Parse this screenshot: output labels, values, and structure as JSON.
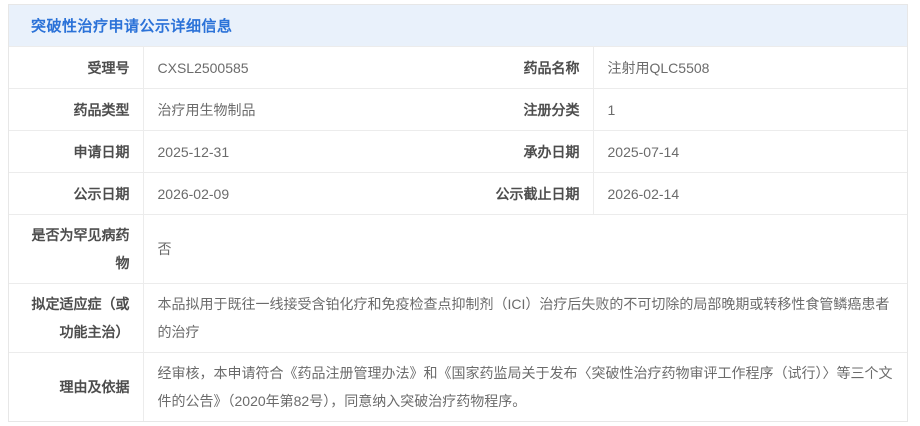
{
  "panel": {
    "title": "突破性治疗申请公示详细信息",
    "colors": {
      "header_bg": "#e9f1fb",
      "title_text": "#2b72d8",
      "panel_border": "#e7e7e7",
      "row_border": "#ececec",
      "label_text": "#4d4d4d",
      "value_text": "#6b6b6b"
    }
  },
  "rows": [
    {
      "kind": "pair",
      "left": {
        "label": "受理号",
        "value": "CXSL2500585"
      },
      "right": {
        "label": "药品名称",
        "value": "注射用QLC5508"
      }
    },
    {
      "kind": "pair",
      "left": {
        "label": "药品类型",
        "value": "治疗用生物制品"
      },
      "right": {
        "label": "注册分类",
        "value": "1"
      }
    },
    {
      "kind": "pair",
      "left": {
        "label": "申请日期",
        "value": "2025-12-31"
      },
      "right": {
        "label": "承办日期",
        "value": "2025-07-14"
      }
    },
    {
      "kind": "pair",
      "left": {
        "label": "公示日期",
        "value": "2026-02-09"
      },
      "right": {
        "label": "公示截止日期",
        "value": "2026-02-14"
      }
    },
    {
      "kind": "full",
      "label": "是否为罕见病药物",
      "value": "否"
    },
    {
      "kind": "full",
      "label": "拟定适应症（或功能主治）",
      "value": "本品拟用于既往一线接受含铂化疗和免疫检查点抑制剂（ICI）治疗后失败的不可切除的局部晚期或转移性食管鳞癌患者的治疗"
    },
    {
      "kind": "full",
      "label": "理由及依据",
      "value": "经审核，本申请符合《药品注册管理办法》和《国家药监局关于发布〈突破性治疗药物审评工作程序（试行）〉等三个文件的公告》（2020年第82号），同意纳入突破治疗药物程序。"
    }
  ]
}
